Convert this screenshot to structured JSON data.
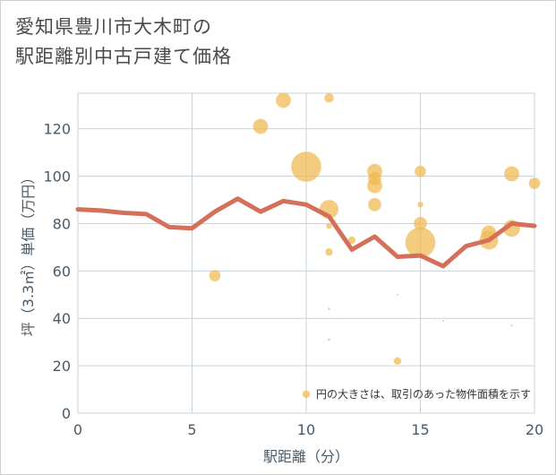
{
  "title_lines": [
    "愛知県豊川市大木町の",
    "駅距離別中古戸建て価格"
  ],
  "colors": {
    "bubble": "#f0b94f",
    "line": "#d4705a",
    "grid": "#c9d3dc",
    "axis_text": "#4a5a66",
    "background": "#ffffff"
  },
  "chart_data": {
    "type": "scatter",
    "title": "愛知県豊川市大木町の駅距離別中古戸建て価格",
    "xlabel": "駅距離（分）",
    "ylabel": "坪（3.3㎡）単価（万円）",
    "xlim": [
      0,
      20
    ],
    "ylim": [
      0,
      135
    ],
    "x_ticks": [
      0,
      5,
      10,
      15,
      20
    ],
    "y_ticks": [
      0,
      20,
      40,
      60,
      80,
      100,
      120
    ],
    "grid": true,
    "note": "円の大きさは、取引のあった物件面積を示す",
    "scatter": [
      {
        "x": 6,
        "y": 58,
        "size": 3
      },
      {
        "x": 8,
        "y": 121,
        "size": 4
      },
      {
        "x": 9,
        "y": 132,
        "size": 4
      },
      {
        "x": 10,
        "y": 104,
        "size": 8
      },
      {
        "x": 10,
        "y": 8,
        "size": 2
      },
      {
        "x": 11,
        "y": 133,
        "size": 2.5
      },
      {
        "x": 11,
        "y": 86,
        "size": 5
      },
      {
        "x": 11,
        "y": 79,
        "size": 1.5
      },
      {
        "x": 11,
        "y": 68,
        "size": 2
      },
      {
        "x": 11,
        "y": 44,
        "size": 0.6
      },
      {
        "x": 11,
        "y": 31,
        "size": 0.6
      },
      {
        "x": 12,
        "y": 73,
        "size": 2
      },
      {
        "x": 13,
        "y": 102,
        "size": 4
      },
      {
        "x": 13,
        "y": 96,
        "size": 4
      },
      {
        "x": 13,
        "y": 99,
        "size": 3.5
      },
      {
        "x": 13,
        "y": 88,
        "size": 3.5
      },
      {
        "x": 14,
        "y": 22,
        "size": 2
      },
      {
        "x": 14,
        "y": 50,
        "size": 0.3
      },
      {
        "x": 15,
        "y": 102,
        "size": 3
      },
      {
        "x": 15,
        "y": 88,
        "size": 1.5
      },
      {
        "x": 15,
        "y": 80,
        "size": 3.5
      },
      {
        "x": 15,
        "y": 72,
        "size": 8
      },
      {
        "x": 16,
        "y": 39,
        "size": 0.3
      },
      {
        "x": 18,
        "y": 76,
        "size": 4
      },
      {
        "x": 18,
        "y": 73,
        "size": 5
      },
      {
        "x": 19,
        "y": 101,
        "size": 4
      },
      {
        "x": 19,
        "y": 78,
        "size": 4.5
      },
      {
        "x": 19,
        "y": 37,
        "size": 0.3
      },
      {
        "x": 20,
        "y": 97,
        "size": 3
      }
    ],
    "series": [
      {
        "name": "平均",
        "x": [
          0,
          1,
          2,
          3,
          4,
          5,
          6,
          7,
          8,
          9,
          10,
          11,
          12,
          13,
          14,
          15,
          16,
          17,
          18,
          19,
          20
        ],
        "values": [
          86,
          85.5,
          84.5,
          84,
          78.5,
          78,
          85,
          90.5,
          85,
          89.5,
          88,
          83,
          69,
          74.5,
          66,
          66.5,
          62,
          70.5,
          73,
          80,
          79
        ]
      }
    ]
  }
}
